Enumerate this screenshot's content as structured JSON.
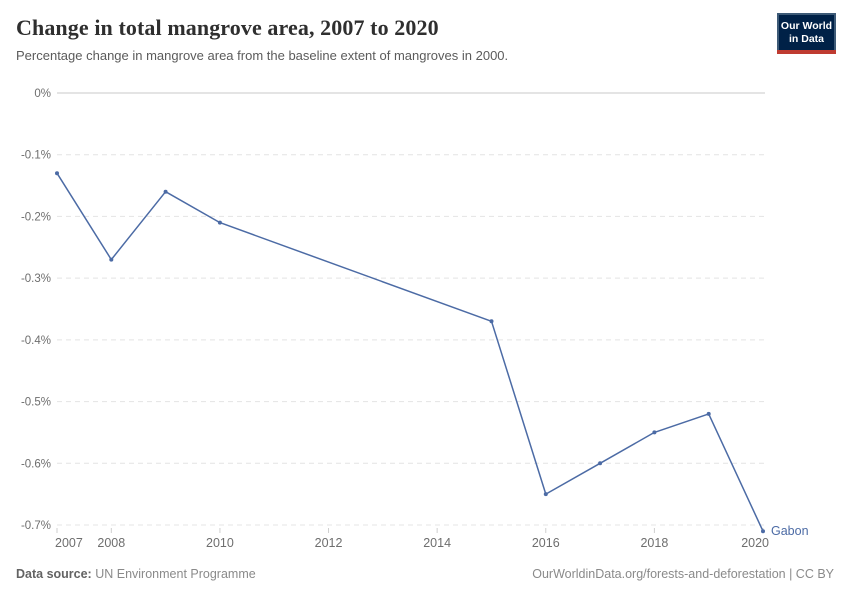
{
  "header": {
    "title": "Change in total mangrove area, 2007 to 2020",
    "subtitle": "Percentage change in mangrove area from the baseline extent of mangroves in 2000.",
    "logo": {
      "line1": "Our World",
      "line2": "in Data"
    }
  },
  "chart_data": {
    "type": "line",
    "title": "Change in total mangrove area, 2007 to 2020",
    "subtitle": "Percentage change in mangrove area from the baseline extent of mangroves in 2000.",
    "xlabel": "",
    "ylabel": "",
    "unit": "%",
    "x": [
      2007,
      2008,
      2009,
      2010,
      2015,
      2016,
      2017,
      2018,
      2019,
      2020
    ],
    "series": [
      {
        "name": "Gabon",
        "values": [
          -0.13,
          -0.27,
          -0.16,
          -0.21,
          -0.37,
          -0.65,
          -0.6,
          -0.55,
          -0.52,
          -0.71
        ]
      }
    ],
    "xlim": [
      2007,
      2020
    ],
    "ylim": [
      -0.7,
      0
    ],
    "x_ticks": [
      {
        "value": 2007,
        "label": "2007"
      },
      {
        "value": 2008,
        "label": "2008"
      },
      {
        "value": 2010,
        "label": "2010"
      },
      {
        "value": 2012,
        "label": "2012"
      },
      {
        "value": 2014,
        "label": "2014"
      },
      {
        "value": 2016,
        "label": "2016"
      },
      {
        "value": 2018,
        "label": "2018"
      },
      {
        "value": 2020,
        "label": "2020"
      }
    ],
    "y_ticks": [
      {
        "value": 0,
        "label": "0%"
      },
      {
        "value": -0.1,
        "label": "-0.1%"
      },
      {
        "value": -0.2,
        "label": "-0.2%"
      },
      {
        "value": -0.3,
        "label": "-0.3%"
      },
      {
        "value": -0.4,
        "label": "-0.4%"
      },
      {
        "value": -0.5,
        "label": "-0.5%"
      },
      {
        "value": -0.6,
        "label": "-0.6%"
      },
      {
        "value": -0.7,
        "label": "-0.7%"
      }
    ],
    "grid": "horizontal-dashed",
    "legend_position": "end-of-line"
  },
  "colors": {
    "series": "#4c6ba5",
    "axis_line": "#c8c8c8",
    "gridline": "#e4e4e4",
    "tick_mark": "#cfcfcf",
    "tick_text": "#6e6e6e",
    "logo_bg": "#002147",
    "logo_border": "#3d5a77",
    "logo_red": "#bf3b31"
  },
  "footer": {
    "datasource_label": "Data source:",
    "datasource_value": "UN Environment Programme",
    "attribution": "OurWorldinData.org/forests-and-deforestation | CC BY"
  }
}
